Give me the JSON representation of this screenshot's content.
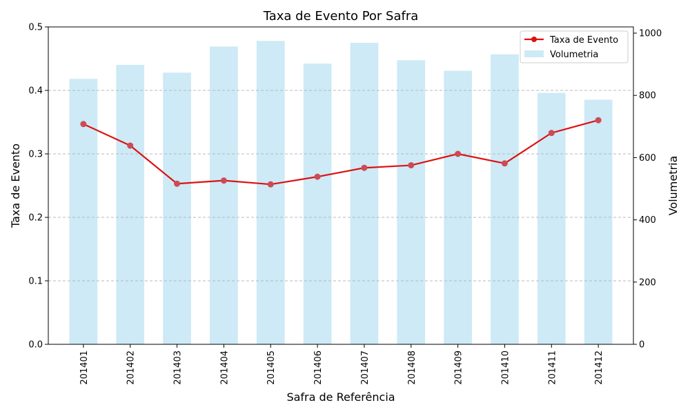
{
  "chart_data": {
    "type": "bar+line",
    "title": "Taxa de Evento Por Safra",
    "xlabel": "Safra de Referência",
    "ylabel_left": "Taxa de Evento",
    "ylabel_right": "Volumetria",
    "categories": [
      "201401",
      "201402",
      "201403",
      "201404",
      "201405",
      "201406",
      "201407",
      "201408",
      "201409",
      "201410",
      "201411",
      "201412"
    ],
    "series": [
      {
        "name": "Taxa de Evento",
        "type": "line",
        "axis": "left",
        "color": "#dd1111",
        "values": [
          0.347,
          0.313,
          0.253,
          0.258,
          0.252,
          0.264,
          0.278,
          0.282,
          0.3,
          0.285,
          0.333,
          0.353
        ]
      },
      {
        "name": "Volumetria",
        "type": "bar",
        "axis": "right",
        "color": "#cdeaf6",
        "values": [
          853,
          898,
          873,
          957,
          975,
          902,
          969,
          913,
          879,
          932,
          808,
          786
        ]
      }
    ],
    "ylim_left": [
      0,
      0.5
    ],
    "yticks_left": [
      "0.0",
      "0.1",
      "0.2",
      "0.3",
      "0.4",
      "0.5"
    ],
    "ylim_right": [
      0,
      1020
    ],
    "yticks_right": [
      "0",
      "200",
      "400",
      "600",
      "800",
      "1000"
    ],
    "grid": true,
    "legend": "top-right"
  }
}
